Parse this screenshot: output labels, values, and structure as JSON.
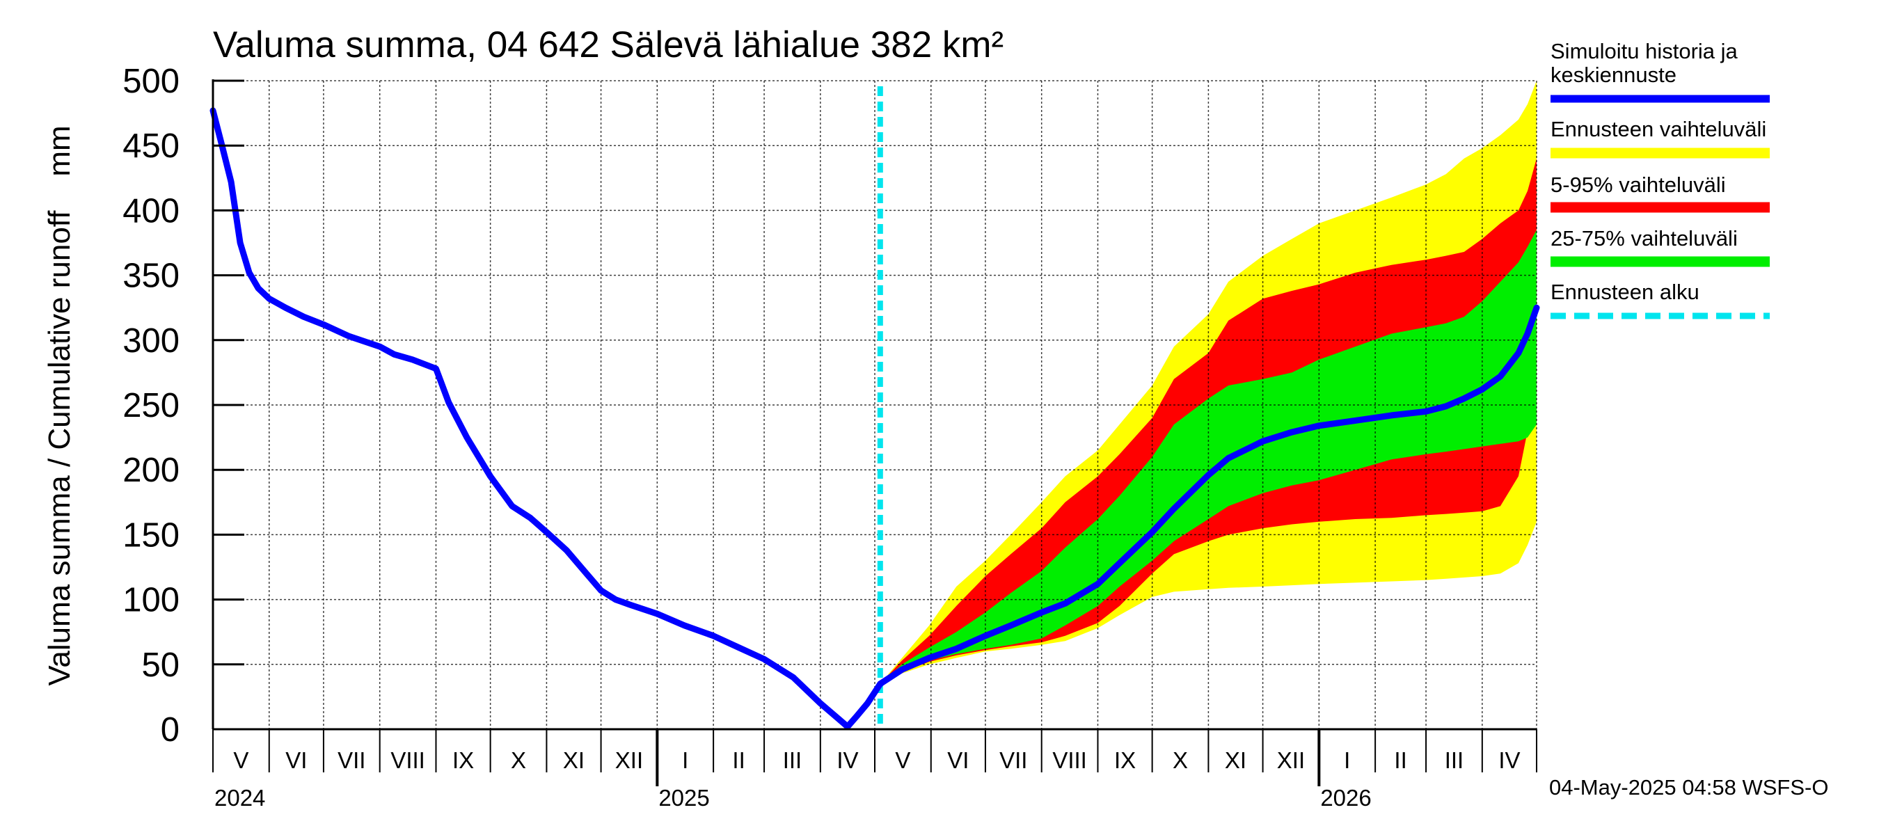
{
  "chart_data": {
    "type": "area",
    "title": "Valuma summa, 04 642 Sälevä lähialue 382 km²",
    "ylabel": "Valuma summa / Cumulative runoff    mm",
    "ylim": [
      0,
      500
    ],
    "yticks": [
      0,
      50,
      100,
      150,
      200,
      250,
      300,
      350,
      400,
      450,
      500
    ],
    "x_unit": "days since 2024-05-01",
    "xlim": [
      0,
      730
    ],
    "forecast_start": 368,
    "months": [
      {
        "label": "V",
        "start": 0
      },
      {
        "label": "VI",
        "start": 31
      },
      {
        "label": "VII",
        "start": 61
      },
      {
        "label": "VIII",
        "start": 92
      },
      {
        "label": "IX",
        "start": 123
      },
      {
        "label": "X",
        "start": 153
      },
      {
        "label": "XI",
        "start": 184
      },
      {
        "label": "XII",
        "start": 214
      },
      {
        "label": "I",
        "start": 245
      },
      {
        "label": "II",
        "start": 276
      },
      {
        "label": "III",
        "start": 304
      },
      {
        "label": "IV",
        "start": 335
      },
      {
        "label": "V",
        "start": 365
      },
      {
        "label": "VI",
        "start": 396
      },
      {
        "label": "VII",
        "start": 426
      },
      {
        "label": "VIII",
        "start": 457
      },
      {
        "label": "IX",
        "start": 488
      },
      {
        "label": "X",
        "start": 518
      },
      {
        "label": "XI",
        "start": 549
      },
      {
        "label": "XII",
        "start": 579
      },
      {
        "label": "I",
        "start": 610
      },
      {
        "label": "II",
        "start": 641
      },
      {
        "label": "III",
        "start": 669
      },
      {
        "label": "IV",
        "start": 700
      }
    ],
    "month_end": 730,
    "years": [
      {
        "label": "2024",
        "day": 0
      },
      {
        "label": "2025",
        "day": 245
      },
      {
        "label": "2026",
        "day": 610
      }
    ],
    "history": {
      "name": "Simuloitu historia ja keskiennuste",
      "color": "#0000ff",
      "x": [
        0,
        5,
        10,
        15,
        20,
        25,
        31,
        40,
        50,
        61,
        75,
        92,
        100,
        110,
        123,
        130,
        140,
        153,
        165,
        175,
        184,
        195,
        206,
        214,
        222,
        230,
        245,
        260,
        276,
        290,
        304,
        320,
        335,
        345,
        350,
        355,
        361,
        368
      ],
      "y": [
        477,
        450,
        422,
        375,
        352,
        340,
        332,
        325,
        318,
        312,
        303,
        295,
        289,
        285,
        278,
        252,
        225,
        195,
        172,
        163,
        152,
        138,
        120,
        107,
        100,
        96,
        89,
        80,
        72,
        63,
        54,
        40,
        20,
        8,
        2,
        10,
        20,
        35
      ]
    },
    "median": {
      "x": [
        368,
        380,
        395,
        410,
        426,
        440,
        457,
        470,
        488,
        500,
        518,
        530,
        549,
        560,
        579,
        595,
        610,
        630,
        650,
        669,
        680,
        690,
        700,
        710,
        720,
        725,
        730
      ],
      "y": [
        35,
        46,
        55,
        62,
        72,
        80,
        90,
        97,
        112,
        128,
        152,
        170,
        196,
        209,
        222,
        229,
        234,
        238,
        242,
        245,
        249,
        255,
        262,
        272,
        290,
        305,
        325
      ]
    },
    "band_yellow": {
      "name": "Ennusteen vaihteluväli",
      "color": "#ffff00",
      "x": [
        368,
        380,
        395,
        410,
        426,
        440,
        457,
        470,
        488,
        500,
        518,
        530,
        549,
        560,
        579,
        595,
        610,
        630,
        650,
        669,
        680,
        690,
        700,
        710,
        720,
        725,
        730
      ],
      "upper": [
        35,
        55,
        80,
        110,
        130,
        150,
        175,
        195,
        215,
        235,
        265,
        295,
        320,
        345,
        365,
        378,
        390,
        400,
        410,
        420,
        428,
        440,
        448,
        458,
        470,
        482,
        500
      ],
      "lower": [
        35,
        43,
        50,
        55,
        60,
        62,
        65,
        68,
        78,
        88,
        102,
        106,
        108,
        109,
        110,
        111,
        112,
        113,
        114,
        115,
        116,
        117,
        118,
        120,
        128,
        142,
        160
      ]
    },
    "band_red": {
      "name": "5-95% vaihteluväli",
      "color": "#ff0000",
      "x": [
        368,
        380,
        395,
        410,
        426,
        440,
        457,
        470,
        488,
        500,
        518,
        530,
        549,
        560,
        579,
        595,
        610,
        630,
        650,
        669,
        680,
        690,
        700,
        710,
        720,
        725,
        730
      ],
      "upper": [
        35,
        53,
        72,
        95,
        118,
        135,
        155,
        175,
        195,
        212,
        240,
        270,
        290,
        315,
        332,
        338,
        343,
        352,
        358,
        362,
        365,
        368,
        378,
        390,
        400,
        415,
        440
      ],
      "lower": [
        35,
        44,
        52,
        57,
        61,
        64,
        67,
        72,
        82,
        95,
        120,
        135,
        145,
        150,
        155,
        158,
        160,
        162,
        163,
        165,
        166,
        167,
        168,
        172,
        195,
        230,
        280
      ]
    },
    "band_green": {
      "name": "25-75% vaihteluväli",
      "color": "#00ee00",
      "x": [
        368,
        380,
        395,
        410,
        426,
        440,
        457,
        470,
        488,
        500,
        518,
        530,
        549,
        560,
        579,
        595,
        610,
        630,
        650,
        669,
        680,
        690,
        700,
        710,
        720,
        725,
        730
      ],
      "upper": [
        35,
        50,
        63,
        75,
        90,
        105,
        122,
        140,
        162,
        180,
        210,
        235,
        255,
        265,
        270,
        275,
        285,
        295,
        305,
        310,
        313,
        318,
        330,
        345,
        360,
        372,
        385
      ],
      "lower": [
        35,
        45,
        53,
        58,
        62,
        65,
        70,
        80,
        95,
        110,
        130,
        145,
        162,
        172,
        182,
        188,
        192,
        200,
        208,
        212,
        214,
        216,
        218,
        220,
        222,
        225,
        235
      ]
    },
    "forecast_line": {
      "name": "Ennusteen alku",
      "color": "#00e5ee"
    },
    "legend_position": "right",
    "grid": true,
    "footer": "04-May-2025 04:58 WSFS-O"
  }
}
